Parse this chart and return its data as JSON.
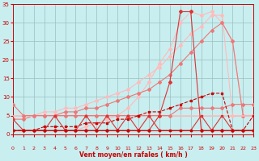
{
  "x": [
    0,
    1,
    2,
    3,
    4,
    5,
    6,
    7,
    8,
    9,
    10,
    11,
    12,
    13,
    14,
    15,
    16,
    17,
    18,
    19,
    20,
    21,
    22,
    23
  ],
  "line_near_zero": [
    1,
    1,
    1,
    1,
    1,
    1,
    1,
    1,
    1,
    1,
    1,
    1,
    1,
    1,
    1,
    1,
    1,
    1,
    1,
    1,
    1,
    1,
    1,
    1
  ],
  "line_zigzag": [
    4,
    1,
    1,
    1,
    5,
    1,
    1,
    5,
    1,
    5,
    1,
    5,
    1,
    5,
    1,
    1,
    1,
    1,
    5,
    1,
    5,
    1,
    1,
    1
  ],
  "line_flat5": [
    5,
    5,
    5,
    5,
    5,
    5,
    5,
    5,
    5,
    5,
    5,
    5,
    5,
    5,
    5,
    5,
    5,
    5,
    5,
    5,
    5,
    5,
    5,
    5
  ],
  "line_flat7_8": [
    8,
    5,
    5,
    5,
    5,
    5,
    5,
    5,
    5,
    5,
    5,
    5,
    5,
    5,
    5,
    5,
    7,
    7,
    7,
    7,
    7,
    8,
    8,
    8
  ],
  "line_rising_slow": [
    1,
    1,
    1,
    2,
    2,
    2,
    2,
    3,
    3,
    3,
    4,
    4,
    5,
    6,
    6,
    7,
    8,
    9,
    10,
    11,
    11,
    1,
    1,
    5
  ],
  "line_rising_diag1": [
    4,
    4,
    5,
    5,
    5,
    6,
    6,
    7,
    7,
    8,
    9,
    10,
    11,
    12,
    14,
    16,
    19,
    22,
    25,
    28,
    30,
    25,
    5,
    5
  ],
  "line_rising_diag2": [
    5,
    5,
    5,
    6,
    6,
    7,
    7,
    8,
    9,
    10,
    11,
    12,
    14,
    16,
    18,
    21,
    24,
    27,
    29,
    32,
    32,
    5,
    5,
    5
  ],
  "line_spike": [
    1,
    1,
    1,
    1,
    1,
    1,
    1,
    1,
    1,
    1,
    1,
    1,
    1,
    1,
    5,
    14,
    33,
    33,
    1,
    1,
    1,
    1,
    1,
    1
  ],
  "line_peak_smooth": [
    1,
    1,
    1,
    1,
    1,
    1,
    1,
    2,
    3,
    4,
    5,
    7,
    10,
    14,
    19,
    23,
    30,
    33,
    32,
    33,
    30,
    25,
    5,
    5
  ],
  "bg_color": "#c8eef0",
  "grid_color": "#9bbfc0",
  "xlabel": "Vent moyen/en rafales ( km/h )",
  "xlim": [
    0,
    23
  ],
  "ylim": [
    0,
    35
  ],
  "yticks": [
    0,
    5,
    10,
    15,
    20,
    25,
    30,
    35
  ],
  "xticks": [
    0,
    1,
    2,
    3,
    4,
    5,
    6,
    7,
    8,
    9,
    10,
    11,
    12,
    13,
    14,
    15,
    16,
    17,
    18,
    19,
    20,
    21,
    22,
    23
  ],
  "c_dark_red": "#cc0000",
  "c_mid_red": "#dd3333",
  "c_salmon": "#ee7777",
  "c_light_pink": "#ffbbbb"
}
